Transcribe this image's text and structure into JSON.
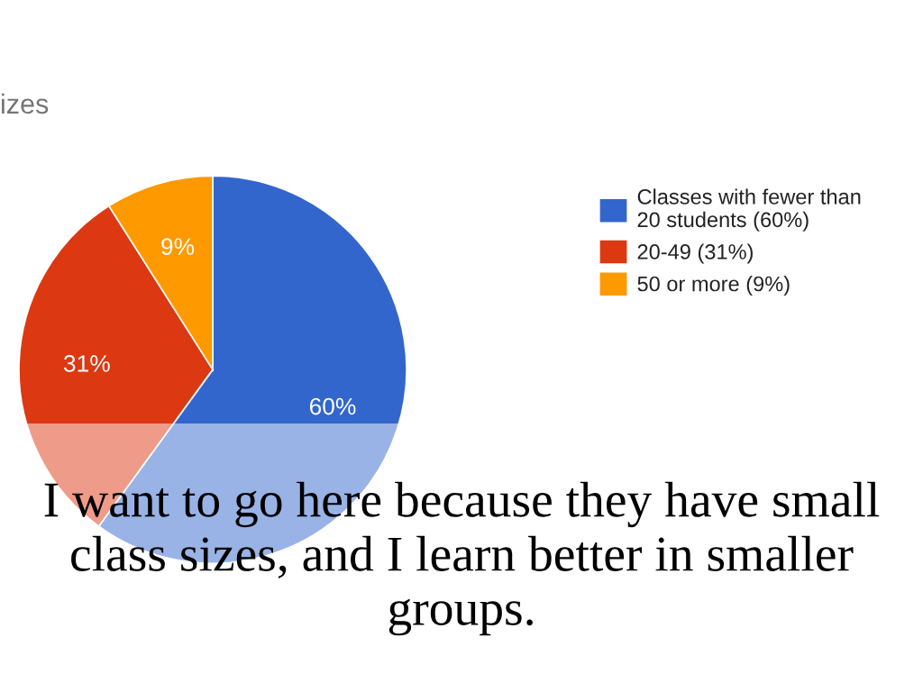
{
  "chart_data": {
    "type": "pie",
    "title": "izes",
    "categories": [
      "Classes with fewer than\n20 students (60%)",
      "20-49 (31%)",
      "50 or more (9%)"
    ],
    "values": [
      60,
      31,
      9
    ],
    "colors": [
      "#3366cc",
      "#dc3912",
      "#ff9900"
    ],
    "value_labels": [
      "60%",
      "31%",
      "9%"
    ],
    "legend": "right",
    "annotations": [
      "I want to go here because they have small class sizes, and I learn better in smaller groups."
    ]
  }
}
